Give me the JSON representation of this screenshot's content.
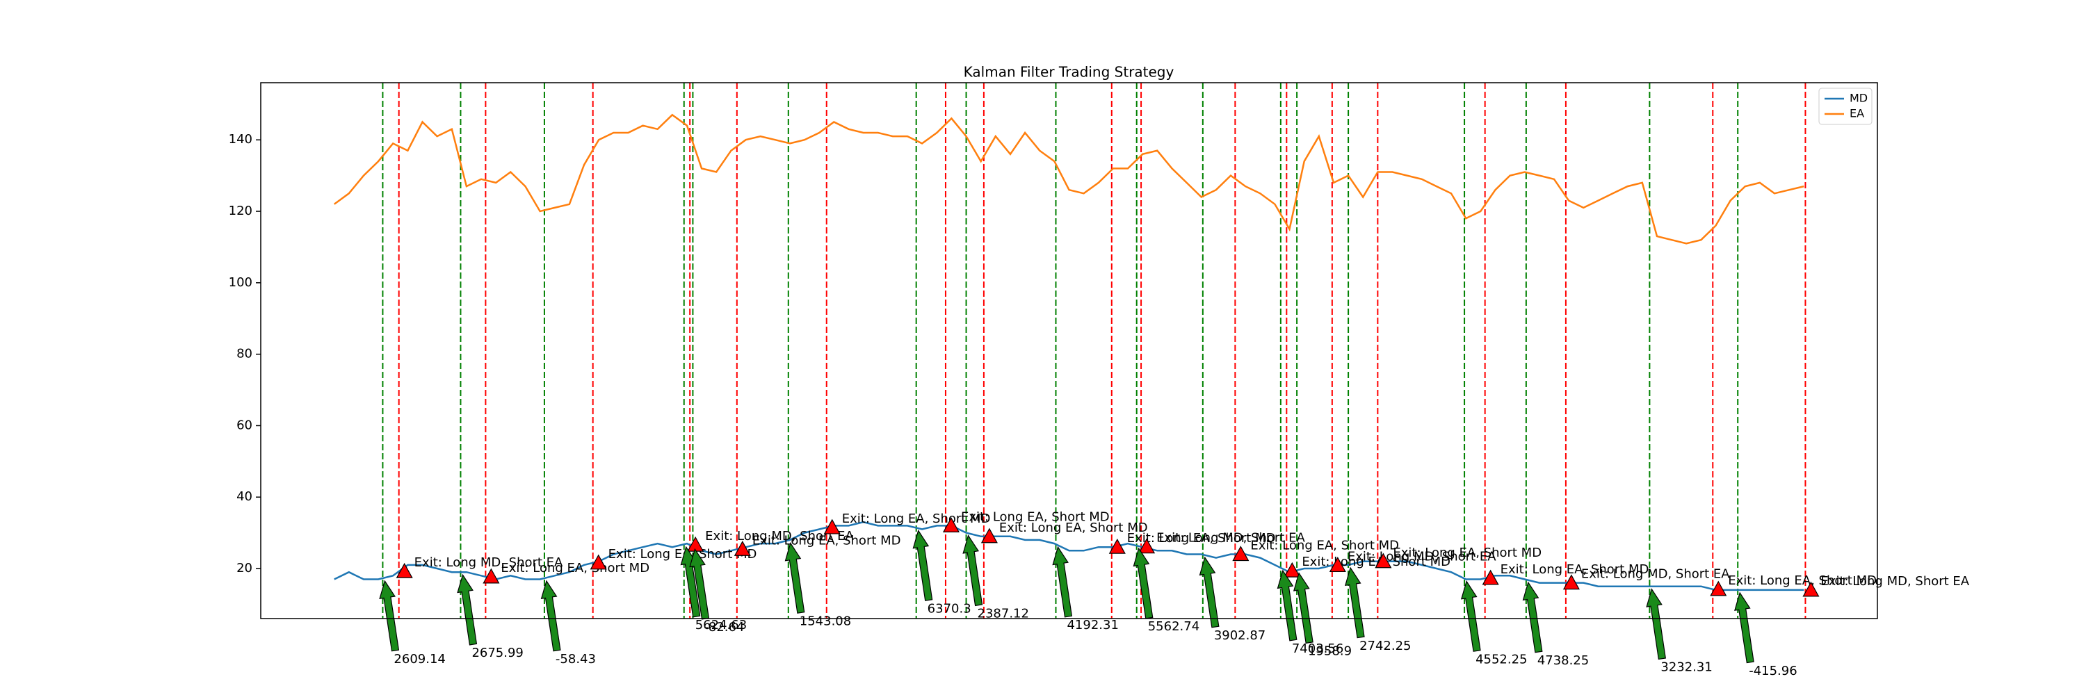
{
  "chart_data": {
    "type": "line",
    "title": "Kalman Filter Trading Strategy",
    "x": [
      0,
      1,
      2,
      3,
      4,
      5,
      6,
      7,
      8,
      9,
      10,
      11,
      12,
      13,
      14,
      15,
      16,
      17,
      18,
      19,
      20,
      21,
      22,
      23,
      24,
      25,
      26,
      27,
      28,
      29,
      30,
      31,
      32,
      33,
      34,
      35,
      36,
      37,
      38,
      39,
      40,
      41,
      42,
      43,
      44,
      45,
      46,
      47,
      48,
      49,
      50,
      51,
      52,
      53,
      54,
      55,
      56,
      57,
      58,
      59,
      60,
      61,
      62,
      63,
      64,
      65,
      66,
      67,
      68,
      69,
      70,
      71,
      72,
      73,
      74,
      75,
      76,
      77,
      78,
      79,
      80,
      81,
      82,
      83,
      84,
      85,
      86,
      87,
      88,
      89,
      90,
      91,
      92,
      93,
      94,
      95,
      96,
      97,
      98,
      99,
      100
    ],
    "series": [
      {
        "name": "MD",
        "color": "#1f77b4",
        "values": [
          17,
          19,
          17,
          17,
          18,
          21,
          21,
          20,
          19,
          19,
          18,
          17,
          18,
          17,
          17,
          18,
          19,
          21,
          22,
          24,
          25,
          26,
          27,
          26,
          27,
          25,
          24,
          25,
          26,
          27,
          27,
          28,
          30,
          31,
          32,
          32,
          33,
          32,
          32,
          32,
          31,
          32,
          32,
          30,
          29,
          29,
          29,
          28,
          28,
          27,
          25,
          25,
          26,
          26,
          27,
          26,
          25,
          25,
          24,
          24,
          23,
          24,
          24,
          23,
          21,
          19,
          20,
          20,
          21,
          21,
          22,
          22,
          22,
          22,
          21,
          20,
          19,
          17,
          17,
          18,
          18,
          17,
          16,
          16,
          16,
          16,
          15,
          15,
          15,
          15,
          15,
          15,
          15,
          15,
          14,
          14,
          14,
          14,
          14,
          14,
          14
        ]
      },
      {
        "name": "EA",
        "color": "#ff7f0e",
        "values": [
          122,
          125,
          130,
          134,
          139,
          137,
          145,
          141,
          143,
          127,
          129,
          128,
          131,
          127,
          120,
          121,
          122,
          133,
          140,
          142,
          142,
          144,
          143,
          147,
          144,
          132,
          131,
          137,
          140,
          141,
          140,
          139,
          140,
          142,
          145,
          143,
          142,
          142,
          141,
          141,
          139,
          142,
          146,
          141,
          134,
          141,
          136,
          142,
          137,
          134,
          126,
          125,
          128,
          132,
          132,
          136,
          137,
          132,
          128,
          124,
          126,
          130,
          127,
          125,
          122,
          115,
          134,
          141,
          128,
          130,
          124,
          131,
          131,
          130,
          129,
          127,
          125,
          118,
          120,
          126,
          130,
          131,
          130,
          129,
          123,
          121,
          123,
          125,
          127,
          128,
          113,
          112,
          111,
          112,
          116,
          123,
          127,
          128,
          125,
          126,
          127
        ]
      }
    ],
    "entries": {
      "color": "green",
      "arrow_color": "#1a8a1a",
      "x": [
        3.3,
        8.6,
        14.3,
        23.8,
        24.4,
        30.9,
        39.6,
        43.0,
        49.1,
        54.6,
        59.1,
        64.4,
        65.5,
        69.0,
        76.9,
        81.1,
        89.5,
        95.5
      ],
      "pnl": [
        2609.14,
        2675.99,
        -58.43,
        5624.63,
        -82.64,
        1543.08,
        6370.3,
        2387.12,
        4192.31,
        5562.74,
        3902.87,
        7403.56,
        1958.9,
        2742.25,
        4552.25,
        4738.25,
        3232.31,
        -415.96
      ]
    },
    "exits": {
      "color": "red",
      "x": [
        4.4,
        10.3,
        17.6,
        24.2,
        27.4,
        33.5,
        41.6,
        44.2,
        52.9,
        54.9,
        61.3,
        64.8,
        67.9,
        71.0,
        78.3,
        83.8,
        93.8,
        100.1
      ],
      "labels": [
        "Exit: Long MD, Short EA",
        "Exit: Long EA, Short MD",
        "Exit: Long EA, Short MD",
        "Exit: Long MD, Short EA",
        "Exit: Long EA, Short MD",
        "Exit: Long EA, Short MD",
        "Exit: Long EA, Short MD",
        "Exit: Long EA, Short MD",
        "Exit: Long EA, Short MD",
        "Exit: Long MD, Short EA",
        "Exit: Long EA, Short MD",
        "Exit: Long EA, Short MD",
        "Exit: Long MD, Short EA",
        "Exit: Long EA, Short MD",
        "Exit: Long EA, Short MD",
        "Exit: Long MD, Short EA",
        "Exit: Long EA, Short MD",
        "Exit: Long MD, Short EA"
      ]
    },
    "xlim": [
      -5,
      105
    ],
    "ylim": [
      6,
      156
    ],
    "yticks": [
      20,
      40,
      60,
      80,
      100,
      120,
      140
    ],
    "legend": "upper right"
  }
}
